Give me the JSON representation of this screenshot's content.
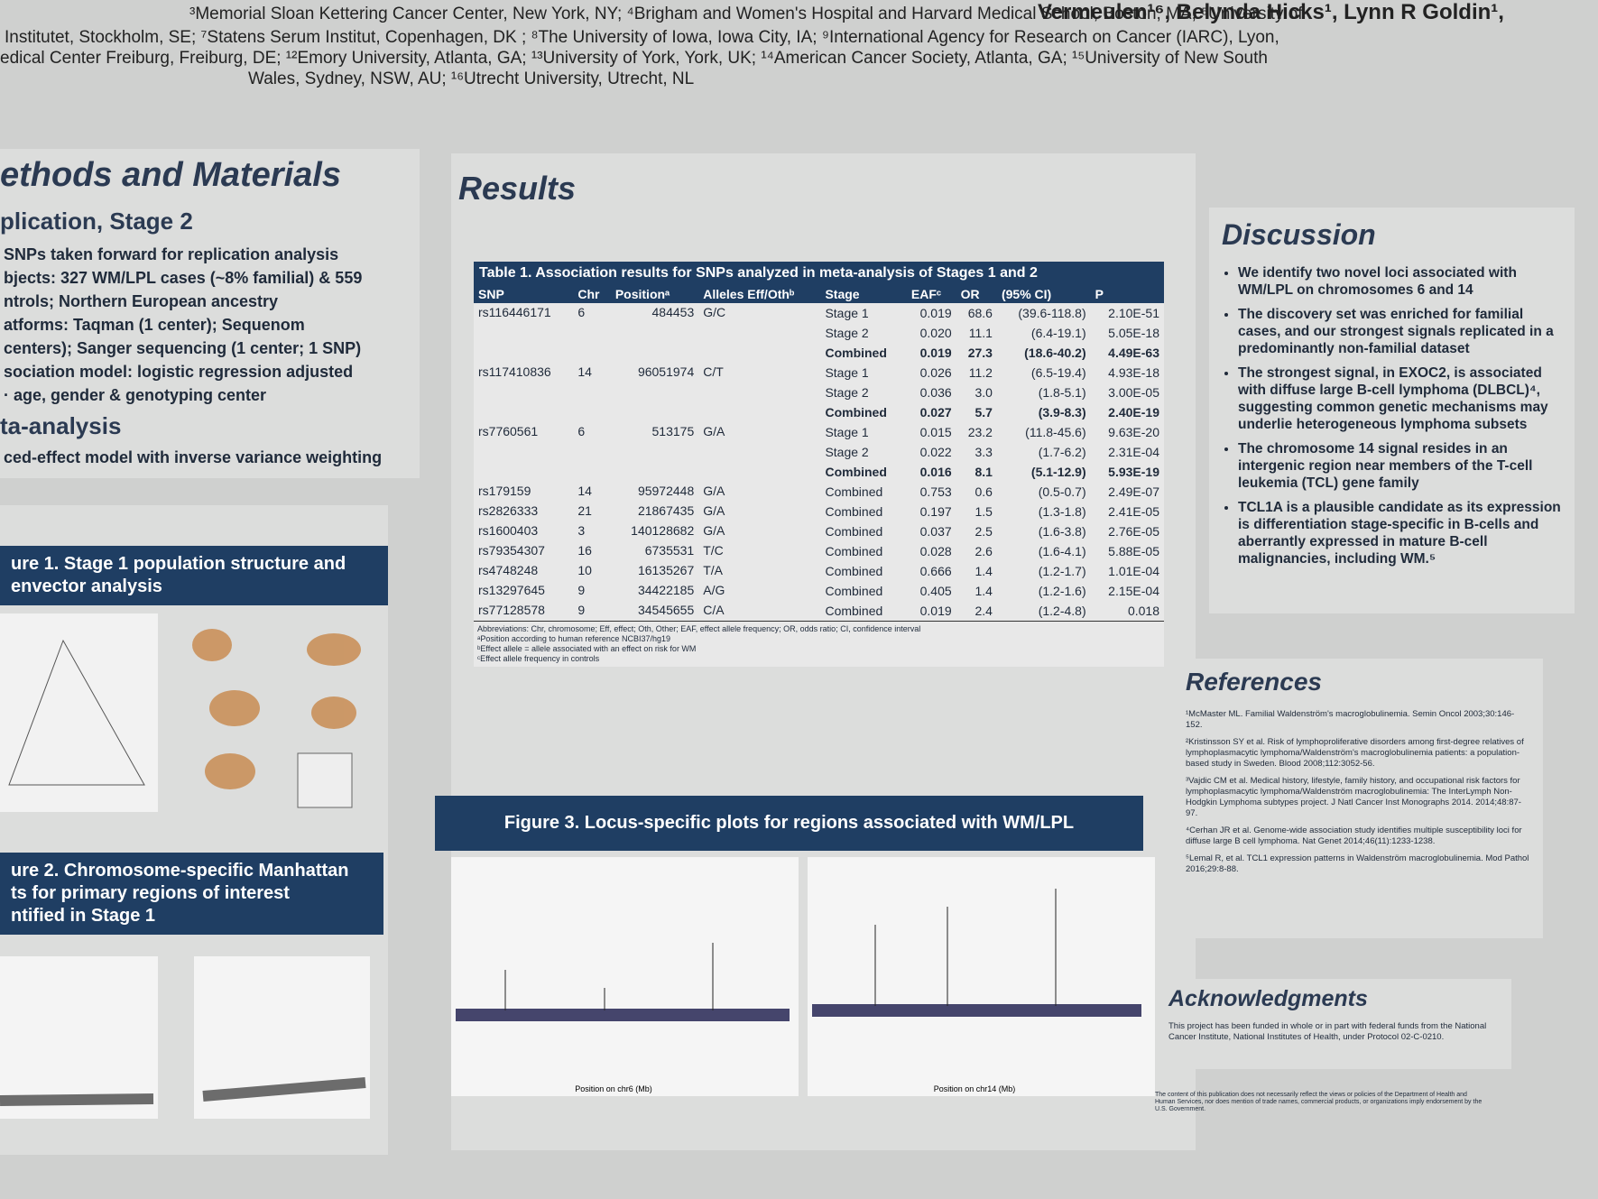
{
  "header": {
    "authors": "Vermeulen¹⁶, Belynda Hicks¹, Lynn R Goldin¹,",
    "affiliations": [
      "Institutet, Stockholm, SE; ⁷Statens Serum Institut, Copenhagen, DK ; ⁸The University of Iowa, Iowa City, IA; ⁹International Agency for Research on Cancer (IARC), Lyon,",
      "edical Center Freiburg, Freiburg, DE; ¹²Emory University, Atlanta, GA; ¹³University of York, York, UK; ¹⁴American Cancer Society, Atlanta, GA; ¹⁵University of New South",
      "Wales, Sydney, NSW, AU; ¹⁶Utrecht University, Utrecht, NL"
    ],
    "affiliation_top": "³Memorial Sloan Kettering Cancer Center, New York, NY; ⁴Brigham and Women's Hospital and Harvard Medical School, Boston, MA; ⁵University of"
  },
  "methods": {
    "title": "ethods and Materials",
    "subtitle": "plication, Stage 2",
    "bullets": [
      "SNPs taken forward for replication analysis",
      "bjects: 327 WM/LPL cases (~8% familial) & 559",
      "ntrols; Northern European ancestry",
      "atforms:  Taqman (1 center); Sequenom",
      "centers); Sanger sequencing (1 center; 1 SNP)",
      "sociation model: logistic regression adjusted",
      "· age, gender & genotyping center"
    ],
    "subtitle2": "ta-analysis",
    "bullets2": [
      "ced-effect model with inverse variance weighting"
    ]
  },
  "figure1": {
    "title": [
      "ure 1.  Stage 1 population structure and",
      "envector analysis"
    ]
  },
  "figure2": {
    "title": [
      "ure 2.  Chromosome-specific Manhattan",
      "ts for primary regions of interest",
      "ntified in Stage 1"
    ]
  },
  "results": {
    "title": "Results",
    "table": {
      "caption": "Table 1.  Association results for SNPs analyzed in meta-analysis of Stages 1 and 2",
      "columns": [
        "SNP",
        "Chr",
        "Positionᵃ",
        "Alleles Eff/Othᵇ",
        "Stage",
        "EAFᶜ",
        "OR",
        "(95% CI)",
        "P"
      ],
      "rows": [
        {
          "snp": "rs116446171",
          "chr": "6",
          "position": "484453",
          "alleles": "G/C",
          "stages": [
            [
              "Stage 1",
              "0.019",
              "68.6",
              "(39.6-118.8)",
              "2.10E-51"
            ],
            [
              "Stage 2",
              "0.020",
              "11.1",
              "(6.4-19.1)",
              "5.05E-18"
            ],
            [
              "Combined",
              "0.019",
              "27.3",
              "(18.6-40.2)",
              "4.49E-63"
            ]
          ]
        },
        {
          "snp": "rs117410836",
          "chr": "14",
          "position": "96051974",
          "alleles": "C/T",
          "stages": [
            [
              "Stage 1",
              "0.026",
              "11.2",
              "(6.5-19.4)",
              "4.93E-18"
            ],
            [
              "Stage 2",
              "0.036",
              "3.0",
              "(1.8-5.1)",
              "3.00E-05"
            ],
            [
              "Combined",
              "0.027",
              "5.7",
              "(3.9-8.3)",
              "2.40E-19"
            ]
          ]
        },
        {
          "snp": "rs7760561",
          "chr": "6",
          "position": "513175",
          "alleles": "G/A",
          "stages": [
            [
              "Stage 1",
              "0.015",
              "23.2",
              "(11.8-45.6)",
              "9.63E-20"
            ],
            [
              "Stage 2",
              "0.022",
              "3.3",
              "(1.7-6.2)",
              "2.31E-04"
            ],
            [
              "Combined",
              "0.016",
              "8.1",
              "(5.1-12.9)",
              "5.93E-19"
            ]
          ]
        },
        {
          "snp": "rs179159",
          "chr": "14",
          "position": "95972448",
          "alleles": "G/A",
          "stages": [
            [
              "Combined",
              "0.753",
              "0.6",
              "(0.5-0.7)",
              "2.49E-07"
            ]
          ]
        },
        {
          "snp": "rs2826333",
          "chr": "21",
          "position": "21867435",
          "alleles": "G/A",
          "stages": [
            [
              "Combined",
              "0.197",
              "1.5",
              "(1.3-1.8)",
              "2.41E-05"
            ]
          ]
        },
        {
          "snp": "rs1600403",
          "chr": "3",
          "position": "140128682",
          "alleles": "G/A",
          "stages": [
            [
              "Combined",
              "0.037",
              "2.5",
              "(1.6-3.8)",
              "2.76E-05"
            ]
          ]
        },
        {
          "snp": "rs79354307",
          "chr": "16",
          "position": "6735531",
          "alleles": "T/C",
          "stages": [
            [
              "Combined",
              "0.028",
              "2.6",
              "(1.6-4.1)",
              "5.88E-05"
            ]
          ]
        },
        {
          "snp": "rs4748248",
          "chr": "10",
          "position": "16135267",
          "alleles": "T/A",
          "stages": [
            [
              "Combined",
              "0.666",
              "1.4",
              "(1.2-1.7)",
              "1.01E-04"
            ]
          ]
        },
        {
          "snp": "rs13297645",
          "chr": "9",
          "position": "34422185",
          "alleles": "A/G",
          "stages": [
            [
              "Combined",
              "0.405",
              "1.4",
              "(1.2-1.6)",
              "2.15E-04"
            ]
          ]
        },
        {
          "snp": "rs77128578",
          "chr": "9",
          "position": "34545655",
          "alleles": "C/A",
          "stages": [
            [
              "Combined",
              "0.019",
              "2.4",
              "(1.2-4.8)",
              "0.018"
            ]
          ]
        }
      ],
      "footnotes": [
        "Abbreviations: Chr, chromosome; Eff, effect; Oth, Other; EAF, effect allele frequency; OR, odds ratio; CI, confidence interval",
        "ᵃPosition according to human reference NCBI37/hg19",
        "ᵇEffect allele = allele associated with an effect on risk for WM",
        "ᶜEffect allele frequency in controls"
      ]
    },
    "figure3": {
      "title": "Figure 3.  Locus-specific plots for regions associated with WM/LPL",
      "xlabels": [
        "Position on chr6 (Mb)",
        "Position on chr14 (Mb)"
      ]
    }
  },
  "discussion": {
    "title": "Discussion",
    "bullets": [
      "We identify two novel loci associated with WM/LPL on chromosomes 6 and 14",
      "The discovery set was enriched for familial cases, and our strongest signals replicated in a predominantly non-familial dataset",
      "The strongest signal, in EXOC2, is associated with diffuse large B-cell lymphoma (DLBCL)⁴, suggesting common genetic mechanisms may underlie heterogeneous lymphoma subsets",
      "The chromosome 14 signal resides in an intergenic region near members of the T-cell leukemia (TCL) gene family",
      "TCL1A is a plausible candidate as its expression is differentiation stage-specific in B-cells and aberrantly expressed in mature B-cell malignancies, including WM.⁵"
    ]
  },
  "references": {
    "title": "References",
    "items": [
      "¹McMaster ML. Familial Waldenström's macroglobulinemia. Semin Oncol 2003;30:146-152.",
      "²Kristinsson SY et al. Risk of lymphoproliferative disorders among first-degree relatives of lymphoplasmacytic lymphoma/Waldenström's macroglobulinemia patients: a population-based study in Sweden. Blood 2008;112:3052-56.",
      "³Vajdic CM et al. Medical history, lifestyle, family history, and occupational risk factors for lymphoplasmacytic lymphoma/Waldenström macroglobulinemia: The InterLymph Non-Hodgkin Lymphoma subtypes project. J Natl Cancer Inst Monographs 2014. 2014;48:87-97.",
      "⁴Cerhan JR et al. Genome-wide association study identifies multiple susceptibility loci for diffuse large B cell lymphoma. Nat Genet 2014;46(11):1233-1238.",
      "⁵Lemal R, et al. TCL1 expression patterns in Waldenström macroglobulinemia. Mod Pathol 2016;29:8-88."
    ]
  },
  "acknowledgments": {
    "title": "Acknowledgments",
    "text": "This project has been funded in whole or in part with federal funds from the National Cancer Institute, National Institutes of Health, under Protocol 02-C-0210.",
    "disclaimer": "The content of this publication does not necessarily reflect the views or policies of the Department of Health and Human Services, nor does mention of trade names, commercial products, or organizations imply endorsement by the U.S. Government."
  }
}
